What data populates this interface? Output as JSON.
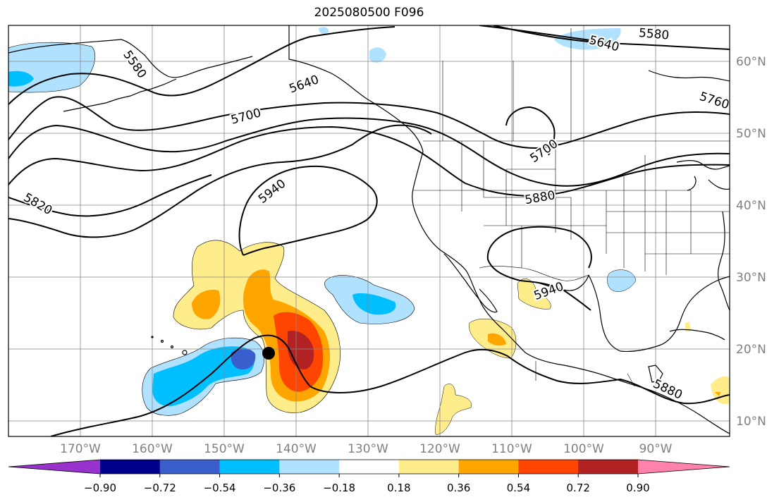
{
  "title": "2025080500 F096",
  "map": {
    "lat_labels": [
      "60°N",
      "50°N",
      "40°N",
      "30°N",
      "20°N",
      "10°N"
    ],
    "lon_labels": [
      "170°W",
      "160°W",
      "150°W",
      "140°W",
      "130°W",
      "120°W",
      "110°W",
      "100°W",
      "90°W"
    ],
    "contour_labels": [
      "5580",
      "5640",
      "5700",
      "5820",
      "5940",
      "5880",
      "5940",
      "5700",
      "5640",
      "5580",
      "5760",
      "5880"
    ],
    "marker": "storm-center"
  },
  "colorbar": {
    "colors": [
      "#9932cc",
      "#00008b",
      "#3a5fcd",
      "#00bfff",
      "#b0e2ff",
      "#ffffff",
      "#ffec8b",
      "#ffa500",
      "#ff4500",
      "#b22222",
      "#ff82ab"
    ],
    "ticks": [
      "−0.90",
      "−0.72",
      "−0.54",
      "−0.36",
      "−0.18",
      "0.18",
      "0.36",
      "0.54",
      "0.72",
      "0.90"
    ]
  }
}
